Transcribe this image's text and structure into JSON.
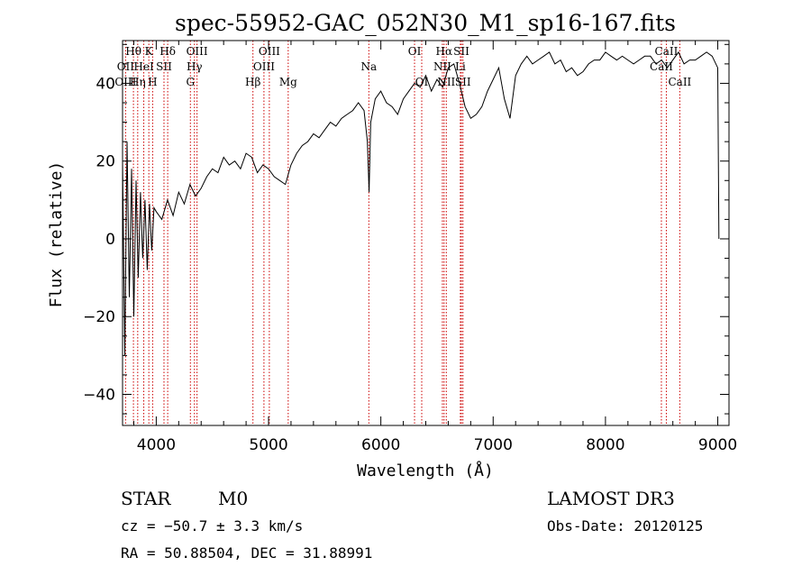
{
  "chart_data": {
    "type": "line",
    "title": "spec-55952-GAC_052N30_M1_sp16-167.fits",
    "xlabel": "Wavelength (Å)",
    "ylabel": "Flux (relative)",
    "xlim": [
      3700,
      9100
    ],
    "ylim": [
      -48,
      51
    ],
    "xticks": [
      4000,
      5000,
      6000,
      7000,
      8000,
      9000
    ],
    "yticks": [
      -40,
      -20,
      0,
      20,
      40
    ],
    "series": [
      {
        "name": "flux",
        "x": [
          3700,
          3720,
          3740,
          3760,
          3780,
          3800,
          3820,
          3840,
          3860,
          3880,
          3900,
          3920,
          3940,
          3960,
          3980,
          4000,
          4050,
          4100,
          4150,
          4200,
          4250,
          4300,
          4350,
          4400,
          4450,
          4500,
          4550,
          4600,
          4650,
          4700,
          4750,
          4800,
          4850,
          4900,
          4950,
          5000,
          5050,
          5100,
          5150,
          5200,
          5250,
          5300,
          5350,
          5400,
          5450,
          5500,
          5550,
          5600,
          5650,
          5700,
          5750,
          5800,
          5850,
          5880,
          5895,
          5910,
          5950,
          6000,
          6050,
          6100,
          6150,
          6200,
          6250,
          6300,
          6350,
          6400,
          6450,
          6500,
          6550,
          6600,
          6650,
          6700,
          6750,
          6800,
          6850,
          6900,
          6950,
          7000,
          7050,
          7100,
          7150,
          7200,
          7250,
          7300,
          7350,
          7400,
          7450,
          7500,
          7550,
          7600,
          7650,
          7700,
          7750,
          7800,
          7850,
          7900,
          7950,
          8000,
          8050,
          8100,
          8150,
          8200,
          8250,
          8300,
          8350,
          8400,
          8450,
          8500,
          8550,
          8600,
          8650,
          8700,
          8750,
          8800,
          8850,
          8900,
          8950,
          9000,
          9010
        ],
        "values": [
          20,
          -30,
          25,
          -15,
          18,
          -20,
          15,
          -10,
          12,
          -5,
          10,
          -8,
          9,
          -3,
          8,
          7,
          5,
          10,
          6,
          12,
          9,
          14,
          11,
          13,
          16,
          18,
          17,
          21,
          19,
          20,
          18,
          22,
          21,
          17,
          19,
          18,
          16,
          15,
          14,
          19,
          22,
          24,
          25,
          27,
          26,
          28,
          30,
          29,
          31,
          32,
          33,
          35,
          33,
          25,
          12,
          30,
          36,
          38,
          35,
          34,
          32,
          36,
          38,
          40,
          39,
          42,
          38,
          41,
          39,
          44,
          45,
          40,
          34,
          31,
          32,
          34,
          38,
          41,
          44,
          36,
          31,
          42,
          45,
          47,
          45,
          46,
          47,
          48,
          45,
          46,
          43,
          44,
          42,
          43,
          45,
          46,
          46,
          48,
          47,
          46,
          47,
          46,
          45,
          46,
          47,
          47,
          45,
          46,
          44,
          46,
          48,
          45,
          46,
          46,
          47,
          48,
          47,
          44,
          0
        ]
      }
    ],
    "spectral_lines": [
      {
        "label": "Hθ",
        "wl": 3797,
        "row": 0
      },
      {
        "label": "OII",
        "wl": 3727,
        "row": 1
      },
      {
        "label": "OIII",
        "wl": 3727,
        "row": 2
      },
      {
        "label": "K",
        "wl": 3934,
        "row": 0
      },
      {
        "label": "HeI",
        "wl": 3889,
        "row": 1
      },
      {
        "label": "Hη",
        "wl": 3835,
        "row": 2
      },
      {
        "label": "Hδ",
        "wl": 4102,
        "row": 0
      },
      {
        "label": "SII",
        "wl": 4069,
        "row": 1
      },
      {
        "label": "H",
        "wl": 3968,
        "row": 2
      },
      {
        "label": "OIII",
        "wl": 4363,
        "row": 0
      },
      {
        "label": "Hγ",
        "wl": 4340,
        "row": 1
      },
      {
        "label": "G",
        "wl": 4304,
        "row": 2
      },
      {
        "label": "Hβ",
        "wl": 4861,
        "row": 2
      },
      {
        "label": "OIII",
        "wl": 5007,
        "row": 0
      },
      {
        "label": "OIII",
        "wl": 4959,
        "row": 1
      },
      {
        "label": "Mg",
        "wl": 5175,
        "row": 2
      },
      {
        "label": "Na",
        "wl": 5893,
        "row": 1
      },
      {
        "label": "OI",
        "wl": 6300,
        "row": 0
      },
      {
        "label": "OI",
        "wl": 6364,
        "row": 2
      },
      {
        "label": "Hα",
        "wl": 6563,
        "row": 0
      },
      {
        "label": "NII",
        "wl": 6548,
        "row": 1
      },
      {
        "label": "NII",
        "wl": 6583,
        "row": 2
      },
      {
        "label": "SII",
        "wl": 6717,
        "row": 0
      },
      {
        "label": "Li",
        "wl": 6708,
        "row": 1
      },
      {
        "label": "SII",
        "wl": 6731,
        "row": 2
      },
      {
        "label": "CaII",
        "wl": 8542,
        "row": 0
      },
      {
        "label": "CaII",
        "wl": 8498,
        "row": 1
      },
      {
        "label": "CaII",
        "wl": 8662,
        "row": 2
      }
    ]
  },
  "info": {
    "object_class": "STAR",
    "subclass": "M0",
    "survey": "LAMOST DR3",
    "cz": "cz = −50.7 ± 3.3 km/s",
    "obs_date": "Obs-Date: 20120125",
    "radec": "RA =  50.88504, DEC =  31.88991"
  },
  "colors": {
    "line": "#000000",
    "marker": "#cc0000"
  }
}
